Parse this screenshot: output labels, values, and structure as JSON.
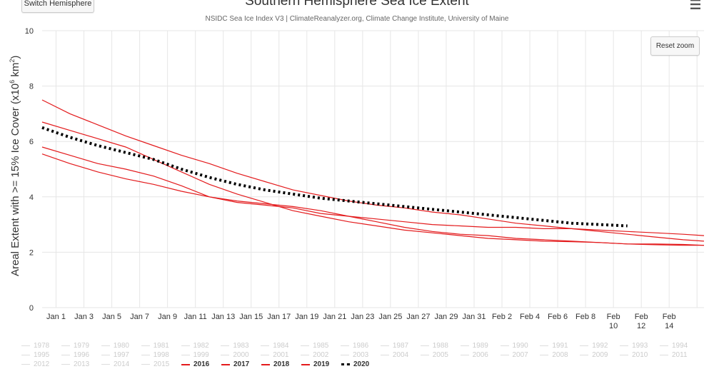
{
  "ui": {
    "switch_label": "Switch Hemisphere",
    "reset_label": "Reset zoom",
    "menu_icon": "hamburger-menu-icon"
  },
  "chart_data": {
    "type": "line",
    "title": "Southern Hemisphere Sea Ice Extent",
    "subtitle": "NSIDC Sea Ice Index V3 | ClimateReanalyzer.org, Climate Change Institute, University of Maine",
    "ylabel_main": "Areal Extent with >= 15% Ice Cover (x10",
    "ylabel_exp": "6",
    "ylabel_unit": " km",
    "ylabel_sq": "2",
    "ylabel_close": ")",
    "xlabel": "",
    "ylim": [
      0,
      10
    ],
    "xlim": [
      0,
      47.5
    ],
    "y_ticks": [
      "0",
      "2",
      "4",
      "6",
      "8",
      "10"
    ],
    "x_ticks": [
      {
        "day": 1,
        "label": "Jan 1"
      },
      {
        "day": 3,
        "label": "Jan 3"
      },
      {
        "day": 5,
        "label": "Jan 5"
      },
      {
        "day": 7,
        "label": "Jan 7"
      },
      {
        "day": 9,
        "label": "Jan 9"
      },
      {
        "day": 11,
        "label": "Jan 11"
      },
      {
        "day": 13,
        "label": "Jan 13"
      },
      {
        "day": 15,
        "label": "Jan 15"
      },
      {
        "day": 17,
        "label": "Jan 17"
      },
      {
        "day": 19,
        "label": "Jan 19"
      },
      {
        "day": 21,
        "label": "Jan 21"
      },
      {
        "day": 23,
        "label": "Jan 23"
      },
      {
        "day": 25,
        "label": "Jan 25"
      },
      {
        "day": 27,
        "label": "Jan 27"
      },
      {
        "day": 29,
        "label": "Jan 29"
      },
      {
        "day": 31,
        "label": "Jan 31"
      },
      {
        "day": 33,
        "label": "Feb 2"
      },
      {
        "day": 35,
        "label": "Feb 4"
      },
      {
        "day": 37,
        "label": "Feb 6"
      },
      {
        "day": 39,
        "label": "Feb 8"
      },
      {
        "day": 41,
        "label": "Feb 10"
      },
      {
        "day": 43,
        "label": "Feb 12"
      },
      {
        "day": 45,
        "label": "Feb 14"
      }
    ],
    "series": [
      {
        "name": "2016",
        "color": "#e31a1c",
        "style": "solid",
        "x": [
          0,
          2,
          4,
          6,
          8,
          10,
          12,
          14,
          16,
          18,
          20,
          22,
          24,
          26,
          28,
          30,
          32,
          34,
          36,
          38,
          40,
          42,
          44,
          46,
          47.5
        ],
        "y": [
          7.5,
          7.0,
          6.6,
          6.2,
          5.85,
          5.5,
          5.2,
          4.85,
          4.55,
          4.25,
          4.05,
          3.85,
          3.7,
          3.6,
          3.45,
          3.35,
          3.2,
          3.05,
          2.95,
          2.85,
          2.75,
          2.65,
          2.55,
          2.45,
          2.4
        ]
      },
      {
        "name": "2017",
        "color": "#e31a1c",
        "style": "solid",
        "x": [
          0,
          2,
          4,
          6,
          8,
          10,
          12,
          14,
          16,
          18,
          20,
          22,
          24,
          26,
          28,
          30,
          32,
          34,
          36,
          38,
          40,
          42,
          44,
          46,
          47.5
        ],
        "y": [
          6.7,
          6.4,
          6.1,
          5.8,
          5.35,
          4.9,
          4.45,
          4.1,
          3.8,
          3.5,
          3.3,
          3.1,
          2.95,
          2.8,
          2.7,
          2.6,
          2.5,
          2.45,
          2.4,
          2.38,
          2.35,
          2.3,
          2.27,
          2.25,
          2.25
        ]
      },
      {
        "name": "2018",
        "color": "#e31a1c",
        "style": "solid",
        "x": [
          0,
          2,
          4,
          6,
          8,
          10,
          12,
          14,
          16,
          18,
          20,
          22,
          24,
          26,
          28,
          30,
          32,
          34,
          36,
          38,
          40,
          42,
          44,
          46,
          47.5
        ],
        "y": [
          5.8,
          5.5,
          5.2,
          5.0,
          4.75,
          4.4,
          4.0,
          3.8,
          3.7,
          3.6,
          3.4,
          3.3,
          3.2,
          3.1,
          3.0,
          2.95,
          2.9,
          2.9,
          2.85,
          2.85,
          2.8,
          2.75,
          2.7,
          2.65,
          2.6
        ]
      },
      {
        "name": "2019",
        "color": "#e31a1c",
        "style": "solid",
        "x": [
          0,
          2,
          4,
          6,
          8,
          10,
          12,
          14,
          16,
          18,
          20,
          22,
          24,
          26,
          28,
          30,
          32,
          34,
          36,
          38,
          40,
          42,
          44,
          46,
          47.5
        ],
        "y": [
          5.55,
          5.2,
          4.9,
          4.65,
          4.45,
          4.2,
          4.0,
          3.85,
          3.75,
          3.65,
          3.5,
          3.3,
          3.1,
          2.9,
          2.75,
          2.65,
          2.6,
          2.5,
          2.45,
          2.4,
          2.35,
          2.3,
          2.3,
          2.28,
          2.25
        ]
      },
      {
        "name": "2020",
        "color": "#000000",
        "style": "dotted",
        "x": [
          0,
          2,
          4,
          6,
          8,
          10,
          12,
          14,
          16,
          18,
          20,
          22,
          24,
          26,
          28,
          30,
          32,
          34,
          36,
          38,
          40,
          42
        ],
        "y": [
          6.5,
          6.15,
          5.85,
          5.6,
          5.35,
          5.0,
          4.7,
          4.45,
          4.25,
          4.1,
          3.95,
          3.85,
          3.75,
          3.65,
          3.55,
          3.45,
          3.35,
          3.25,
          3.15,
          3.05,
          3.0,
          2.95
        ]
      }
    ],
    "legend": [
      [
        "1978",
        "1979",
        "1980",
        "1981",
        "1982",
        "1983",
        "1984",
        "1985",
        "1986",
        "1987",
        "1988",
        "1989",
        "1990",
        "1991",
        "1992",
        "1993",
        "1994"
      ],
      [
        "1995",
        "1996",
        "1997",
        "1998",
        "1999",
        "2000",
        "2001",
        "2002",
        "2003",
        "2004",
        "2005",
        "2006",
        "2007",
        "2008",
        "2009",
        "2010",
        "2011"
      ],
      [
        "2012",
        "2013",
        "2014",
        "2015",
        "2016",
        "2017",
        "2018",
        "2019",
        "2020"
      ]
    ],
    "legend_active": [
      "2016",
      "2017",
      "2018",
      "2019",
      "2020"
    ],
    "legend_dotted": [
      "2020"
    ],
    "grid": true,
    "legend_position": "bottom"
  }
}
